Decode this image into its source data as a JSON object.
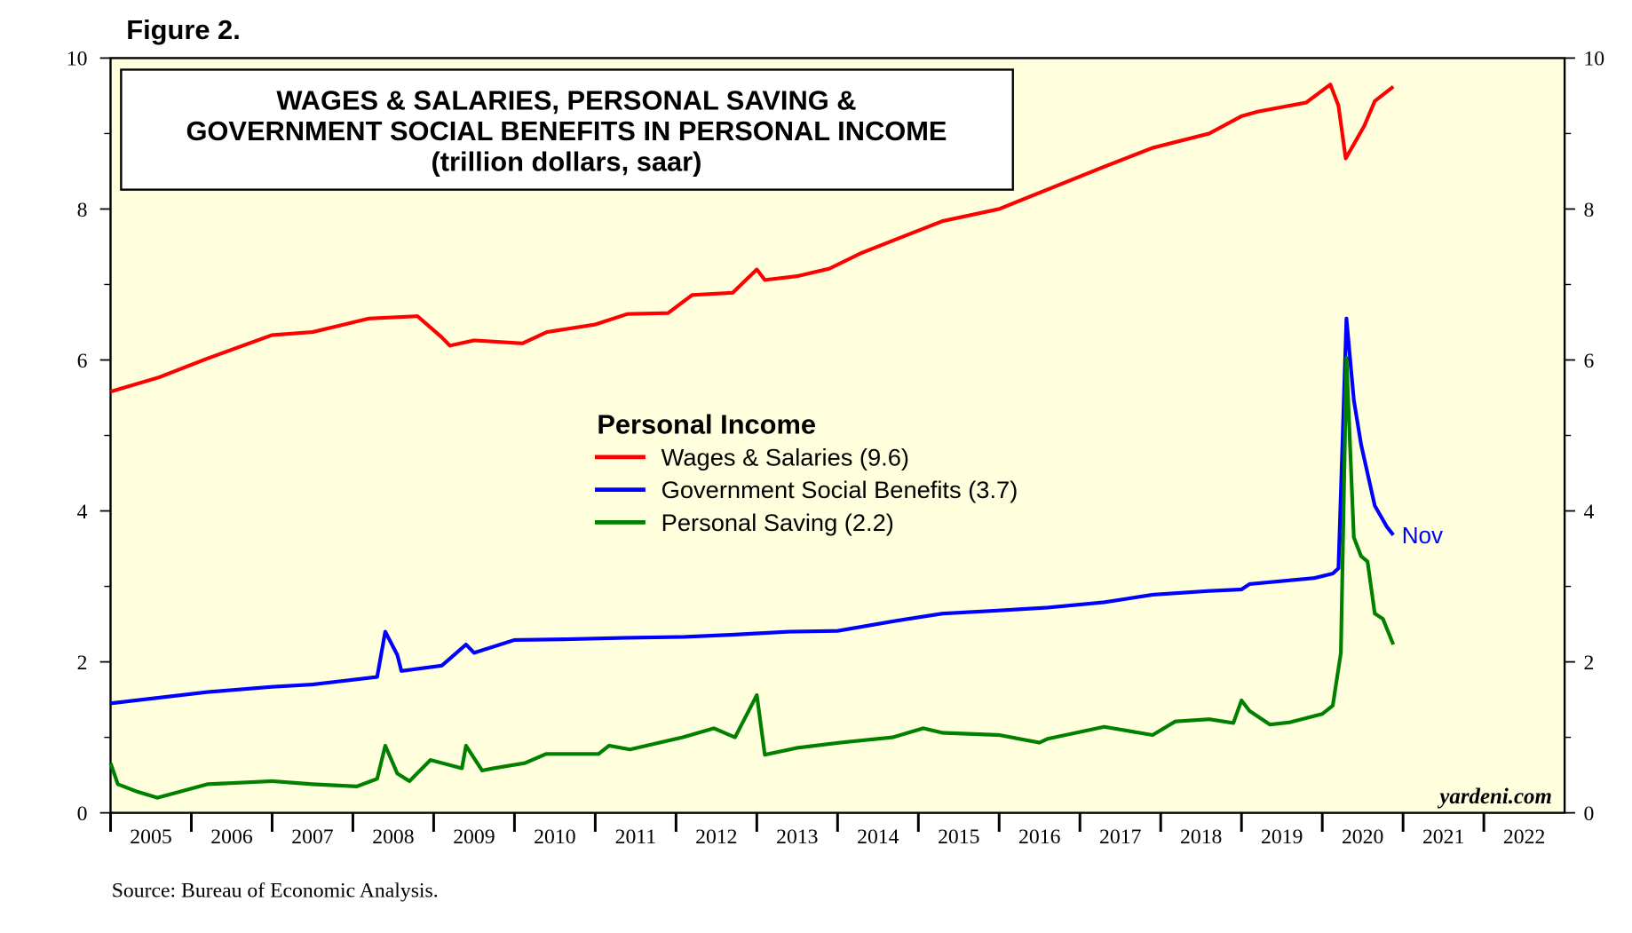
{
  "chart_data": {
    "type": "line",
    "figure_label": "Figure 2.",
    "title_lines": [
      "WAGES & SALARIES, PERSONAL SAVING &",
      "GOVERNMENT SOCIAL BENEFITS IN PERSONAL INCOME",
      "(trillion dollars, saar)"
    ],
    "legend_title": "Personal Income",
    "annotation": "Nov",
    "watermark": "yardeni.com",
    "source": "Source: Bureau of Economic Analysis.",
    "background": "#ffffdd",
    "xlim": [
      2005,
      2023
    ],
    "xticks": [
      2005,
      2006,
      2007,
      2008,
      2009,
      2010,
      2011,
      2012,
      2013,
      2014,
      2015,
      2016,
      2017,
      2018,
      2019,
      2020,
      2021,
      2022
    ],
    "ylim": [
      0,
      10
    ],
    "yticks": [
      0,
      2,
      4,
      6,
      8,
      10
    ],
    "y2lim": [
      0,
      10
    ],
    "y2ticks": [
      0,
      2,
      4,
      6,
      8,
      10
    ],
    "series": [
      {
        "name": "Wages & Salaries (9.6)",
        "color": "#ff0000",
        "x": [
          2005.0,
          2005.6,
          2006.2,
          2007.0,
          2007.5,
          2008.2,
          2008.8,
          2009.1,
          2009.2,
          2009.5,
          2010.1,
          2010.4,
          2011.0,
          2011.4,
          2011.9,
          2012.2,
          2012.7,
          2013.0,
          2013.1,
          2013.5,
          2013.9,
          2014.3,
          2014.8,
          2015.3,
          2016.0,
          2016.6,
          2017.3,
          2017.9,
          2018.6,
          2019.0,
          2019.2,
          2019.8,
          2020.1,
          2020.2,
          2020.29,
          2020.52,
          2020.65,
          2020.88
        ],
        "values": [
          5.58,
          5.77,
          6.02,
          6.33,
          6.37,
          6.55,
          6.58,
          6.3,
          6.19,
          6.26,
          6.22,
          6.37,
          6.47,
          6.61,
          6.62,
          6.86,
          6.89,
          7.2,
          7.06,
          7.11,
          7.21,
          7.42,
          7.63,
          7.84,
          8.0,
          8.26,
          8.56,
          8.81,
          9.0,
          9.23,
          9.29,
          9.41,
          9.65,
          9.37,
          8.67,
          9.1,
          9.43,
          9.62
        ]
      },
      {
        "name": "Government Social Benefits (3.7)",
        "color": "#0000ff",
        "x": [
          2005.0,
          2006.2,
          2007.0,
          2007.5,
          2008.3,
          2008.4,
          2008.55,
          2008.6,
          2009.1,
          2009.4,
          2009.5,
          2010.0,
          2010.65,
          2011.4,
          2012.1,
          2012.7,
          2013.4,
          2014.0,
          2014.7,
          2015.3,
          2016.0,
          2016.6,
          2017.3,
          2017.9,
          2018.6,
          2019.0,
          2019.1,
          2019.9,
          2020.13,
          2020.2,
          2020.3,
          2020.39,
          2020.48,
          2020.65,
          2020.8,
          2020.88
        ],
        "values": [
          1.45,
          1.6,
          1.67,
          1.7,
          1.8,
          2.4,
          2.09,
          1.88,
          1.95,
          2.23,
          2.12,
          2.29,
          2.3,
          2.32,
          2.33,
          2.36,
          2.4,
          2.41,
          2.54,
          2.64,
          2.68,
          2.72,
          2.79,
          2.89,
          2.94,
          2.96,
          3.03,
          3.11,
          3.17,
          3.24,
          6.55,
          5.47,
          4.88,
          4.07,
          3.79,
          3.68
        ]
      },
      {
        "name": "Personal Saving (2.2)",
        "color": "#008000",
        "x": [
          2005.0,
          2005.09,
          2005.33,
          2005.58,
          2006.2,
          2007.0,
          2007.5,
          2008.05,
          2008.3,
          2008.4,
          2008.55,
          2008.7,
          2008.96,
          2009.35,
          2009.4,
          2009.6,
          2009.74,
          2010.13,
          2010.39,
          2011.04,
          2011.17,
          2011.43,
          2012.08,
          2012.47,
          2012.73,
          2013.0,
          2013.1,
          2013.5,
          2014.03,
          2014.68,
          2015.06,
          2015.3,
          2016.0,
          2016.5,
          2016.6,
          2017.3,
          2017.9,
          2018.18,
          2018.6,
          2018.9,
          2019.0,
          2019.1,
          2019.35,
          2019.6,
          2020.0,
          2020.13,
          2020.23,
          2020.3,
          2020.39,
          2020.48,
          2020.56,
          2020.65,
          2020.75,
          2020.88
        ],
        "values": [
          0.66,
          0.38,
          0.28,
          0.2,
          0.38,
          0.42,
          0.38,
          0.35,
          0.45,
          0.89,
          0.52,
          0.42,
          0.7,
          0.59,
          0.89,
          0.56,
          0.59,
          0.66,
          0.78,
          0.78,
          0.89,
          0.84,
          1.0,
          1.12,
          1.0,
          1.56,
          0.77,
          0.86,
          0.93,
          1.0,
          1.12,
          1.06,
          1.03,
          0.93,
          0.98,
          1.14,
          1.03,
          1.21,
          1.24,
          1.19,
          1.49,
          1.35,
          1.17,
          1.2,
          1.31,
          1.42,
          2.12,
          6.03,
          3.65,
          3.4,
          3.33,
          2.64,
          2.57,
          2.23
        ]
      }
    ]
  }
}
